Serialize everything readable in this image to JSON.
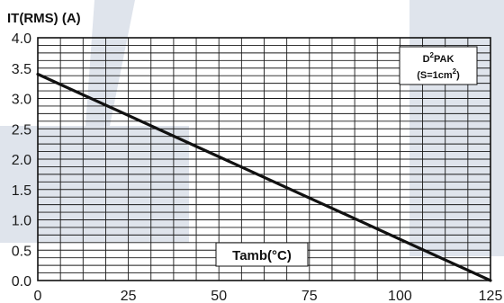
{
  "colors": {
    "watermark": "#dfe4ec",
    "grid": "#1a1a1a",
    "line": "#111111"
  },
  "chart_data": {
    "type": "line",
    "title": "IT(RMS) (A)",
    "xlabel": "Tamb(°C)",
    "x_ticks": [
      "0",
      "25",
      "50",
      "75",
      "100",
      "125"
    ],
    "y_ticks": [
      "0.0",
      "0.5",
      "1.0",
      "1.5",
      "2.0",
      "2.5",
      "3.0",
      "3.5",
      "4.0"
    ],
    "xlim": [
      0,
      125
    ],
    "ylim": [
      0,
      4.0
    ],
    "grid": true,
    "annotation": {
      "line1_pre": "D",
      "line1_sup": "2",
      "line1_post": "PAK",
      "line2_pre": "(S=1cm",
      "line2_sup": "2",
      "line2_post": ")",
      "placement": "top-right"
    },
    "series": [
      {
        "x": [
          0,
          125
        ],
        "y": [
          3.4,
          0.0
        ]
      }
    ]
  }
}
